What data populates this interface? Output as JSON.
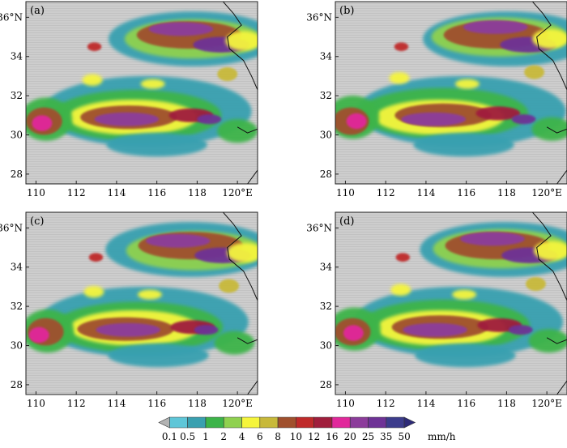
{
  "panels": [
    {
      "label": "(a)",
      "id": "a"
    },
    {
      "label": "(b)",
      "id": "b"
    },
    {
      "label": "(c)",
      "id": "c"
    },
    {
      "label": "(d)",
      "id": "d"
    }
  ],
  "map": {
    "x_ticks": [
      "110",
      "112",
      "114",
      "116",
      "118",
      "120°E"
    ],
    "y_ticks": [
      "28",
      "30",
      "32",
      "34",
      "36°N"
    ],
    "lon_range": [
      109.5,
      121.0
    ],
    "lat_range": [
      27.5,
      36.8
    ],
    "land_color": "#cccccc"
  },
  "colorbar": {
    "unit": "mm/h",
    "tick_labels": [
      "0.1",
      "0.5",
      "1",
      "2",
      "4",
      "6",
      "8",
      "10",
      "12",
      "16",
      "20",
      "25",
      "35",
      "50"
    ],
    "colors": [
      "#b3b3b3",
      "#5ec6d8",
      "#39a0b0",
      "#3cb449",
      "#8fd14f",
      "#f5f53c",
      "#c8b93a",
      "#a0502d",
      "#bf2a2a",
      "#a01e3c",
      "#e1289b",
      "#8c3c9b",
      "#6e3296",
      "#3c3c8c",
      "#2d2a78"
    ]
  }
}
